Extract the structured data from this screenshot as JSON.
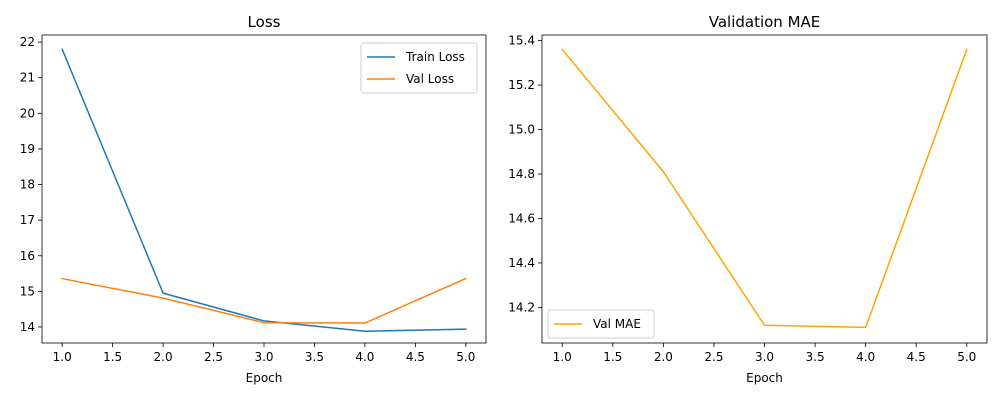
{
  "chart_data": [
    {
      "type": "line",
      "title": "Loss",
      "xlabel": "Epoch",
      "ylabel": "",
      "xlim": [
        0.8,
        5.2
      ],
      "ylim": [
        13.55,
        22.2
      ],
      "xticks": [
        1.0,
        1.5,
        2.0,
        2.5,
        3.0,
        3.5,
        4.0,
        4.5,
        5.0
      ],
      "xtick_labels": [
        "1.0",
        "1.5",
        "2.0",
        "2.5",
        "3.0",
        "3.5",
        "4.0",
        "4.5",
        "5.0"
      ],
      "yticks": [
        14,
        15,
        16,
        17,
        18,
        19,
        20,
        21,
        22
      ],
      "ytick_labels": [
        "14",
        "15",
        "16",
        "17",
        "18",
        "19",
        "20",
        "21",
        "22"
      ],
      "grid": false,
      "legend_position": "top-right",
      "series": [
        {
          "name": "Train Loss",
          "color": "#1f77b4",
          "x": [
            1,
            2,
            3,
            4,
            5
          ],
          "y": [
            21.8,
            14.95,
            14.17,
            13.88,
            13.94
          ]
        },
        {
          "name": "Val Loss",
          "color": "#ff7f0e",
          "x": [
            1,
            2,
            3,
            4,
            5
          ],
          "y": [
            15.36,
            14.81,
            14.12,
            14.11,
            15.36
          ]
        }
      ]
    },
    {
      "type": "line",
      "title": "Validation MAE",
      "xlabel": "Epoch",
      "ylabel": "",
      "xlim": [
        0.8,
        5.2
      ],
      "ylim": [
        14.04,
        15.425
      ],
      "xticks": [
        1.0,
        1.5,
        2.0,
        2.5,
        3.0,
        3.5,
        4.0,
        4.5,
        5.0
      ],
      "xtick_labels": [
        "1.0",
        "1.5",
        "2.0",
        "2.5",
        "3.0",
        "3.5",
        "4.0",
        "4.5",
        "5.0"
      ],
      "yticks": [
        14.2,
        14.4,
        14.6,
        14.8,
        15.0,
        15.2,
        15.4
      ],
      "ytick_labels": [
        "14.2",
        "14.4",
        "14.6",
        "14.8",
        "15.0",
        "15.2",
        "15.4"
      ],
      "grid": false,
      "legend_position": "bottom-left",
      "series": [
        {
          "name": "Val MAE",
          "color": "#ffa500",
          "x": [
            1,
            2,
            3,
            4,
            5
          ],
          "y": [
            15.36,
            14.81,
            14.12,
            14.11,
            15.36
          ]
        }
      ]
    }
  ]
}
